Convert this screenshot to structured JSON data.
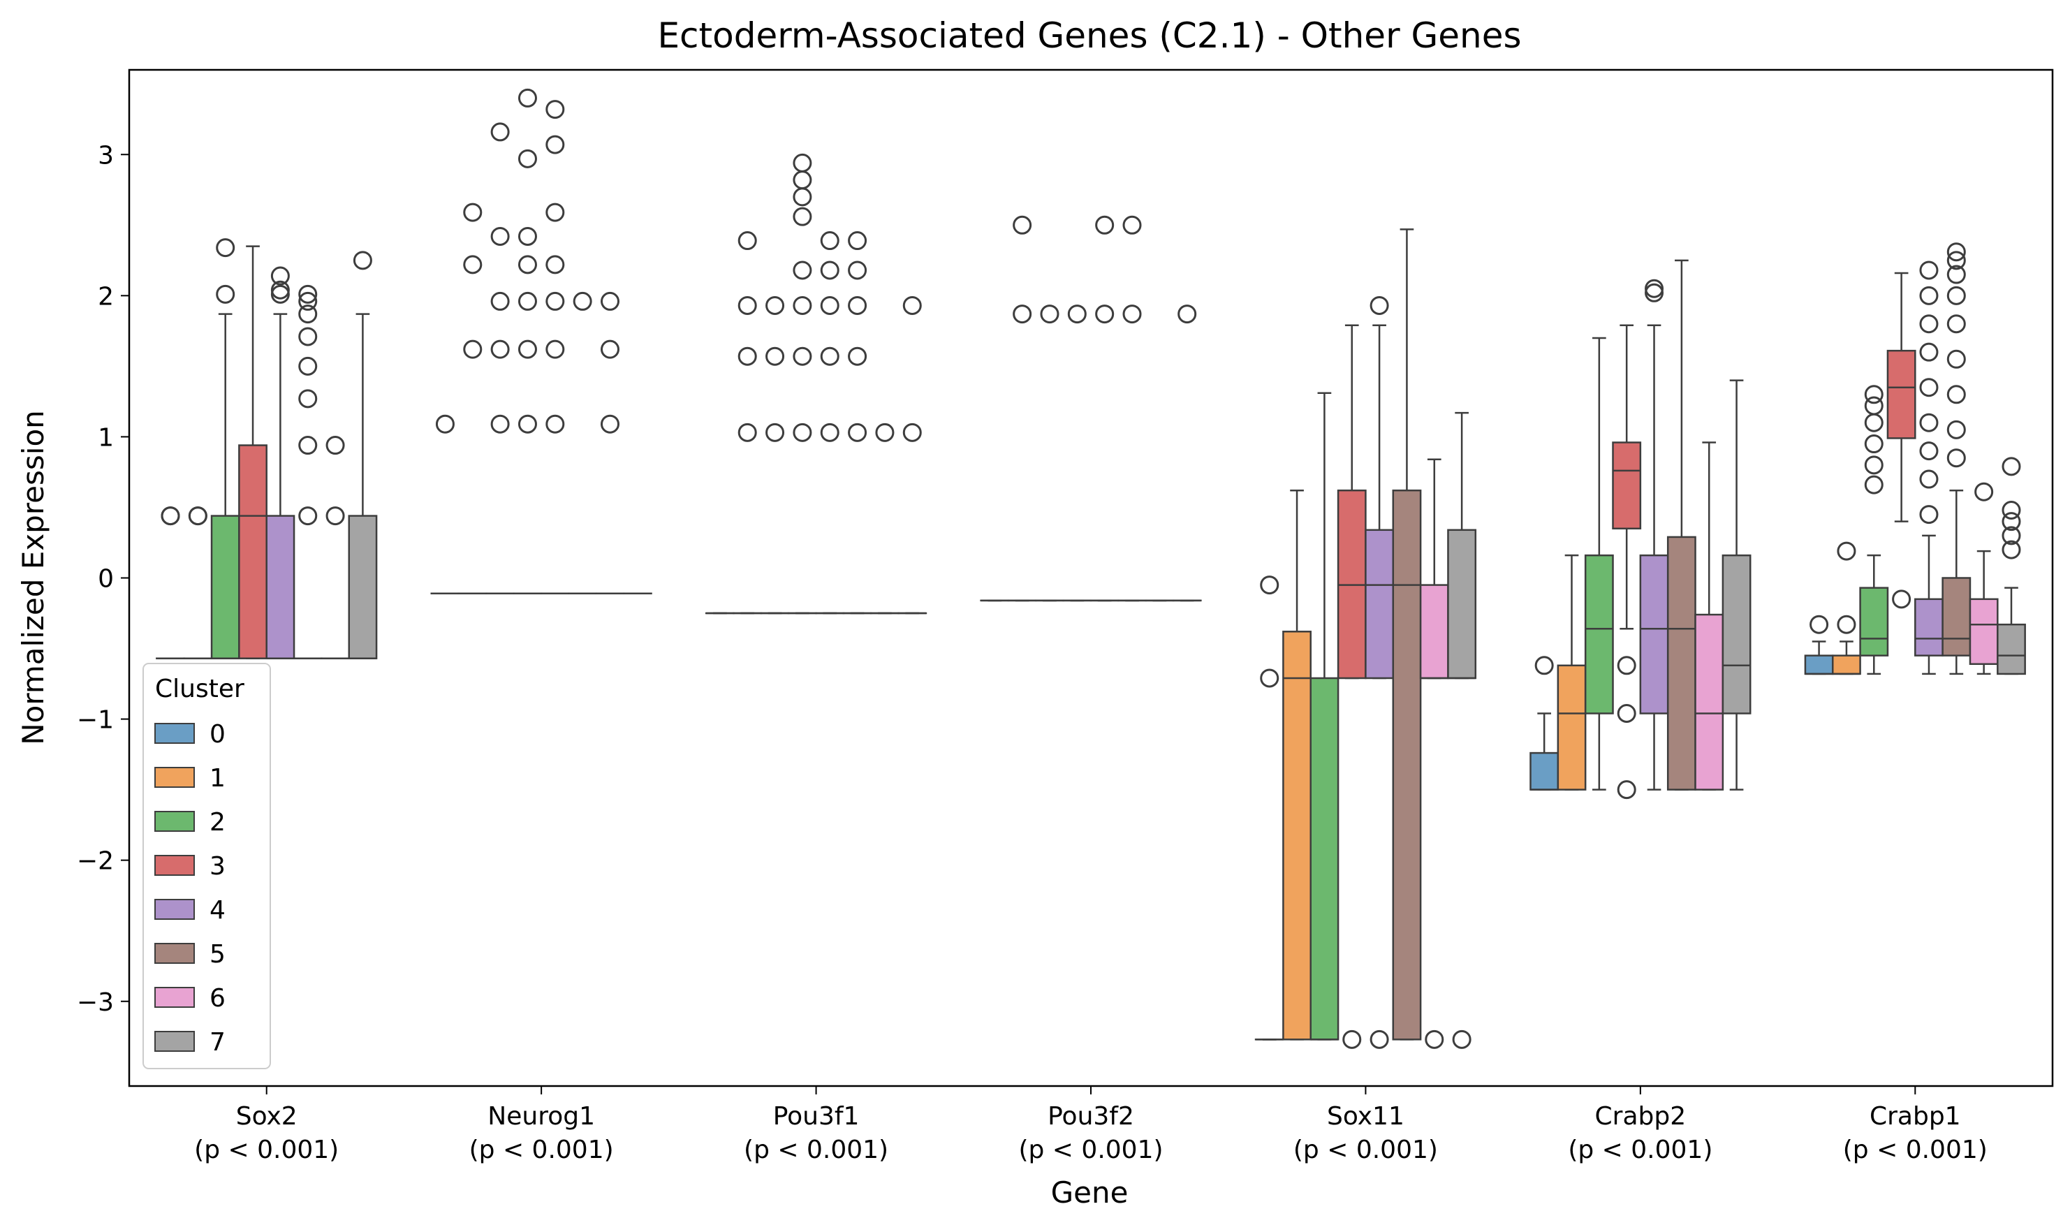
{
  "chart_data": {
    "type": "box",
    "title": "Ectoderm-Associated Genes (C2.1) - Other Genes",
    "xlabel": "Gene",
    "ylabel": "Normalized Expression",
    "ylim": [
      -3.6,
      3.6
    ],
    "yticks": [
      -3,
      -2,
      -1,
      0,
      1,
      2,
      3
    ],
    "ytick_labels": [
      "−3",
      "−2",
      "−1",
      "0",
      "1",
      "2",
      "3"
    ],
    "grid": false,
    "legend": {
      "title": "Cluster",
      "position": "lower-left",
      "entries": [
        "0",
        "1",
        "2",
        "3",
        "4",
        "5",
        "6",
        "7"
      ]
    },
    "cluster_colors": [
      "#6a9ec5",
      "#f0a35d",
      "#6cb86e",
      "#d76c6c",
      "#ad92cb",
      "#a5857d",
      "#e8a3d2",
      "#a4a4a4"
    ],
    "categories": [
      {
        "gene": "Sox2",
        "pvalue": "(p < 0.001)"
      },
      {
        "gene": "Neurog1",
        "pvalue": "(p < 0.001)"
      },
      {
        "gene": "Pou3f1",
        "pvalue": "(p < 0.001)"
      },
      {
        "gene": "Pou3f2",
        "pvalue": "(p < 0.001)"
      },
      {
        "gene": "Sox11",
        "pvalue": "(p < 0.001)"
      },
      {
        "gene": "Crabp2",
        "pvalue": "(p < 0.001)"
      },
      {
        "gene": "Crabp1",
        "pvalue": "(p < 0.001)"
      }
    ],
    "boxes": [
      [
        {
          "min": -0.57,
          "q1": -0.57,
          "median": -0.57,
          "q3": -0.57,
          "max": -0.57,
          "outliers": [
            0.44,
            0.44
          ]
        },
        {
          "min": -0.57,
          "q1": -0.57,
          "median": -0.57,
          "q3": -0.57,
          "max": -0.57,
          "outliers": [
            0.44,
            0.44
          ]
        },
        {
          "min": -0.57,
          "q1": -0.57,
          "median": -0.57,
          "q3": 0.44,
          "max": 1.87,
          "outliers": [
            2.01,
            2.34
          ]
        },
        {
          "min": -0.57,
          "q1": -0.57,
          "median": 0.44,
          "q3": 0.94,
          "max": 2.35,
          "outliers": []
        },
        {
          "min": -0.57,
          "q1": -0.57,
          "median": -0.57,
          "q3": 0.44,
          "max": 1.87,
          "outliers": [
            2.01,
            2.04,
            2.14
          ]
        },
        {
          "min": -0.57,
          "q1": -0.57,
          "median": -0.57,
          "q3": -0.57,
          "max": -0.57,
          "outliers": [
            0.44,
            0.94,
            1.27,
            1.5,
            1.71,
            1.87,
            1.96,
            2.01
          ]
        },
        {
          "min": -0.57,
          "q1": -0.57,
          "median": -0.57,
          "q3": -0.57,
          "max": -0.57,
          "outliers": [
            0.44,
            0.94
          ]
        },
        {
          "min": -0.57,
          "q1": -0.57,
          "median": -0.57,
          "q3": 0.44,
          "max": 1.87,
          "outliers": [
            2.25
          ]
        }
      ],
      [
        {
          "min": -0.11,
          "q1": -0.11,
          "median": -0.11,
          "q3": -0.11,
          "max": -0.11,
          "outliers": [
            1.09
          ]
        },
        {
          "min": -0.11,
          "q1": -0.11,
          "median": -0.11,
          "q3": -0.11,
          "max": -0.11,
          "outliers": [
            1.62,
            2.22,
            2.59
          ]
        },
        {
          "min": -0.11,
          "q1": -0.11,
          "median": -0.11,
          "q3": -0.11,
          "max": -0.11,
          "outliers": [
            1.09,
            1.62,
            1.96,
            2.42,
            3.16
          ]
        },
        {
          "min": -0.11,
          "q1": -0.11,
          "median": -0.11,
          "q3": -0.11,
          "max": -0.11,
          "outliers": [
            1.09,
            1.62,
            1.96,
            2.22,
            2.42,
            2.97,
            3.4
          ]
        },
        {
          "min": -0.11,
          "q1": -0.11,
          "median": -0.11,
          "q3": -0.11,
          "max": -0.11,
          "outliers": [
            1.09,
            1.62,
            1.96,
            2.22,
            2.59,
            3.07,
            3.32
          ]
        },
        {
          "min": -0.11,
          "q1": -0.11,
          "median": -0.11,
          "q3": -0.11,
          "max": -0.11,
          "outliers": [
            1.96
          ]
        },
        {
          "min": -0.11,
          "q1": -0.11,
          "median": -0.11,
          "q3": -0.11,
          "max": -0.11,
          "outliers": [
            1.09,
            1.62,
            1.96
          ]
        },
        {
          "min": -0.11,
          "q1": -0.11,
          "median": -0.11,
          "q3": -0.11,
          "max": -0.11,
          "outliers": []
        }
      ],
      [
        {
          "min": -0.25,
          "q1": -0.25,
          "median": -0.25,
          "q3": -0.25,
          "max": -0.25,
          "outliers": []
        },
        {
          "min": -0.25,
          "q1": -0.25,
          "median": -0.25,
          "q3": -0.25,
          "max": -0.25,
          "outliers": [
            1.03,
            1.57,
            1.93,
            2.39
          ]
        },
        {
          "min": -0.25,
          "q1": -0.25,
          "median": -0.25,
          "q3": -0.25,
          "max": -0.25,
          "outliers": [
            1.03,
            1.57,
            1.93
          ]
        },
        {
          "min": -0.25,
          "q1": -0.25,
          "median": -0.25,
          "q3": -0.25,
          "max": -0.25,
          "outliers": [
            1.03,
            1.57,
            1.93,
            2.18,
            2.56,
            2.7,
            2.82,
            2.94
          ]
        },
        {
          "min": -0.25,
          "q1": -0.25,
          "median": -0.25,
          "q3": -0.25,
          "max": -0.25,
          "outliers": [
            1.03,
            1.57,
            1.93,
            2.18,
            2.39
          ]
        },
        {
          "min": -0.25,
          "q1": -0.25,
          "median": -0.25,
          "q3": -0.25,
          "max": -0.25,
          "outliers": [
            1.03,
            1.57,
            1.93,
            2.18,
            2.39
          ]
        },
        {
          "min": -0.25,
          "q1": -0.25,
          "median": -0.25,
          "q3": -0.25,
          "max": -0.25,
          "outliers": [
            1.03
          ]
        },
        {
          "min": -0.25,
          "q1": -0.25,
          "median": -0.25,
          "q3": -0.25,
          "max": -0.25,
          "outliers": [
            1.03,
            1.93
          ]
        }
      ],
      [
        {
          "min": -0.16,
          "q1": -0.16,
          "median": -0.16,
          "q3": -0.16,
          "max": -0.16,
          "outliers": []
        },
        {
          "min": -0.16,
          "q1": -0.16,
          "median": -0.16,
          "q3": -0.16,
          "max": -0.16,
          "outliers": [
            1.87,
            2.5
          ]
        },
        {
          "min": -0.16,
          "q1": -0.16,
          "median": -0.16,
          "q3": -0.16,
          "max": -0.16,
          "outliers": [
            1.87
          ]
        },
        {
          "min": -0.16,
          "q1": -0.16,
          "median": -0.16,
          "q3": -0.16,
          "max": -0.16,
          "outliers": [
            1.87
          ]
        },
        {
          "min": -0.16,
          "q1": -0.16,
          "median": -0.16,
          "q3": -0.16,
          "max": -0.16,
          "outliers": [
            1.87,
            2.5
          ]
        },
        {
          "min": -0.16,
          "q1": -0.16,
          "median": -0.16,
          "q3": -0.16,
          "max": -0.16,
          "outliers": [
            1.87,
            2.5
          ]
        },
        {
          "min": -0.16,
          "q1": -0.16,
          "median": -0.16,
          "q3": -0.16,
          "max": -0.16,
          "outliers": []
        },
        {
          "min": -0.16,
          "q1": -0.16,
          "median": -0.16,
          "q3": -0.16,
          "max": -0.16,
          "outliers": [
            1.87
          ]
        }
      ],
      [
        {
          "min": -3.27,
          "q1": -3.27,
          "median": -3.27,
          "q3": -3.27,
          "max": -3.27,
          "outliers": [
            -0.71,
            -0.05
          ]
        },
        {
          "min": -3.27,
          "q1": -3.27,
          "median": -0.71,
          "q3": -0.38,
          "max": 0.62,
          "outliers": []
        },
        {
          "min": -3.27,
          "q1": -3.27,
          "median": -3.27,
          "q3": -0.71,
          "max": 1.31,
          "outliers": []
        },
        {
          "min": -0.71,
          "q1": -0.71,
          "median": -0.05,
          "q3": 0.62,
          "max": 1.79,
          "outliers": [
            -3.27
          ]
        },
        {
          "min": -0.71,
          "q1": -0.71,
          "median": -0.05,
          "q3": 0.34,
          "max": 1.79,
          "outliers": [
            -3.27,
            1.93
          ]
        },
        {
          "min": -3.27,
          "q1": -3.27,
          "median": -0.05,
          "q3": 0.62,
          "max": 2.47,
          "outliers": []
        },
        {
          "min": -0.71,
          "q1": -0.71,
          "median": -0.71,
          "q3": -0.05,
          "max": 0.84,
          "outliers": [
            -3.27
          ]
        },
        {
          "min": -0.71,
          "q1": -0.71,
          "median": -0.71,
          "q3": 0.34,
          "max": 1.17,
          "outliers": [
            -3.27
          ]
        }
      ],
      [
        {
          "min": -1.5,
          "q1": -1.5,
          "median": -1.5,
          "q3": -1.24,
          "max": -0.96,
          "outliers": [
            -0.62
          ]
        },
        {
          "min": -1.5,
          "q1": -1.5,
          "median": -0.96,
          "q3": -0.62,
          "max": 0.16,
          "outliers": []
        },
        {
          "min": -1.5,
          "q1": -0.96,
          "median": -0.36,
          "q3": 0.16,
          "max": 1.7,
          "outliers": []
        },
        {
          "min": -0.36,
          "q1": 0.35,
          "median": 0.76,
          "q3": 0.96,
          "max": 1.79,
          "outliers": [
            -1.5,
            -0.96,
            -0.62
          ]
        },
        {
          "min": -1.5,
          "q1": -0.96,
          "median": -0.36,
          "q3": 0.16,
          "max": 1.79,
          "outliers": [
            2.02,
            2.05
          ]
        },
        {
          "min": -1.5,
          "q1": -1.5,
          "median": -0.36,
          "q3": 0.29,
          "max": 2.25,
          "outliers": []
        },
        {
          "min": -1.5,
          "q1": -1.5,
          "median": -0.96,
          "q3": -0.26,
          "max": 0.96,
          "outliers": []
        },
        {
          "min": -1.5,
          "q1": -0.96,
          "median": -0.62,
          "q3": 0.16,
          "max": 1.4,
          "outliers": []
        }
      ],
      [
        {
          "min": -0.68,
          "q1": -0.68,
          "median": -0.68,
          "q3": -0.55,
          "max": -0.45,
          "outliers": [
            -0.33
          ]
        },
        {
          "min": -0.68,
          "q1": -0.68,
          "median": -0.68,
          "q3": -0.55,
          "max": -0.45,
          "outliers": [
            -0.33,
            0.19
          ]
        },
        {
          "min": -0.68,
          "q1": -0.55,
          "median": -0.43,
          "q3": -0.07,
          "max": 0.16,
          "outliers": [
            0.66,
            0.8,
            0.95,
            1.1,
            1.22,
            1.3
          ]
        },
        {
          "min": 0.4,
          "q1": 0.99,
          "median": 1.35,
          "q3": 1.61,
          "max": 2.16,
          "outliers": [
            -0.15
          ]
        },
        {
          "min": -0.68,
          "q1": -0.55,
          "median": -0.43,
          "q3": -0.15,
          "max": 0.3,
          "outliers": [
            0.45,
            0.7,
            0.9,
            1.1,
            1.35,
            1.6,
            1.8,
            2.0,
            2.18
          ]
        },
        {
          "min": -0.68,
          "q1": -0.55,
          "median": -0.43,
          "q3": 0.0,
          "max": 0.62,
          "outliers": [
            0.85,
            1.05,
            1.3,
            1.55,
            1.8,
            2.0,
            2.15,
            2.25,
            2.31
          ]
        },
        {
          "min": -0.68,
          "q1": -0.61,
          "median": -0.33,
          "q3": -0.15,
          "max": 0.19,
          "outliers": [
            0.61
          ]
        },
        {
          "min": -0.68,
          "q1": -0.68,
          "median": -0.55,
          "q3": -0.33,
          "max": -0.07,
          "outliers": [
            0.2,
            0.3,
            0.4,
            0.48,
            0.79
          ]
        }
      ]
    ]
  }
}
